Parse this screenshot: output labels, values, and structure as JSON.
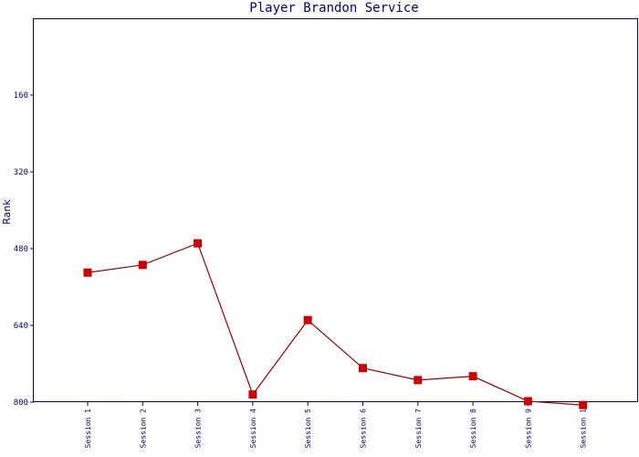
{
  "chart_data": {
    "type": "line",
    "title": "Player Brandon Service",
    "xlabel": "",
    "ylabel": "Rank",
    "y_inverted": true,
    "ylim": [
      0,
      800
    ],
    "yticks": [
      160,
      320,
      480,
      640,
      800
    ],
    "categories": [
      "Session 1",
      "Session 2",
      "Session 3",
      "Session 4",
      "Session 5",
      "Session 6",
      "Session 7",
      "Session 8",
      "Session 9",
      "Session 1"
    ],
    "series": [
      {
        "values": [
          530,
          514,
          469,
          784,
          629,
          729,
          754,
          746,
          798,
          806
        ]
      }
    ],
    "grid": false,
    "colors": {
      "line": "#990000",
      "marker": "#cc0000",
      "axis": "#000080",
      "text": "#000080"
    }
  }
}
